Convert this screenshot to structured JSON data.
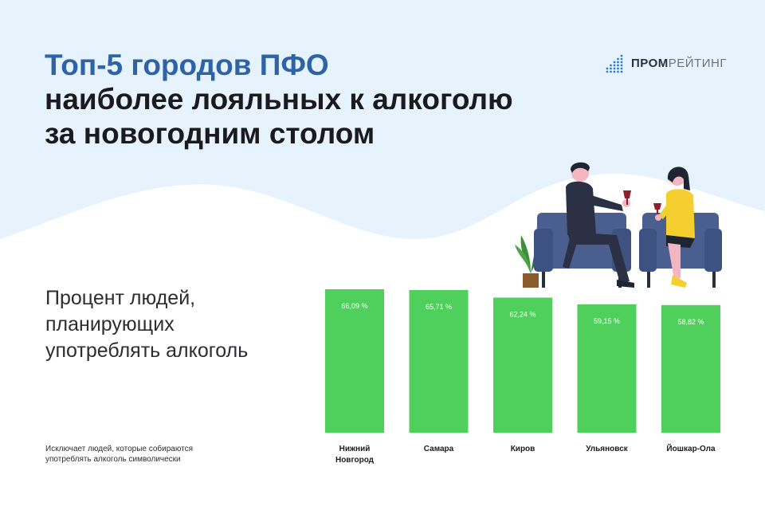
{
  "title": {
    "line1": "Топ-5 городов ПФО",
    "line2": "наиболее лояльных к алкоголю",
    "line3": "за новогодним столом"
  },
  "logo": {
    "part1": "ПРОМ",
    "part2": "РЕЙТИНГ",
    "color": "#2f7fd1"
  },
  "subtitle": "Процент людей, планирующих употреблять алкоголь",
  "footnote": "Исключает людей, которые собираются употреблять алкоголь символически",
  "colors": {
    "bar": "#4fcf5c",
    "title_accent": "#2f63a8",
    "background_wave": "#e6f3fc"
  },
  "chart_data": {
    "type": "bar",
    "categories": [
      "Нижний Новгород",
      "Самара",
      "Киров",
      "Ульяновск",
      "Йошкар-Ола"
    ],
    "category_lines": [
      [
        "Нижний",
        "Новгород"
      ],
      [
        "Самара"
      ],
      [
        "Киров"
      ],
      [
        "Ульяновск"
      ],
      [
        "Йошкар-Ола"
      ]
    ],
    "values": [
      66.09,
      65.71,
      62.24,
      59.15,
      58.82
    ],
    "value_labels": [
      "66,09 %",
      "65,71 %",
      "62,24 %",
      "59,15 %",
      "58,82 %"
    ],
    "unit": "%",
    "grid": false,
    "legend": "none"
  }
}
